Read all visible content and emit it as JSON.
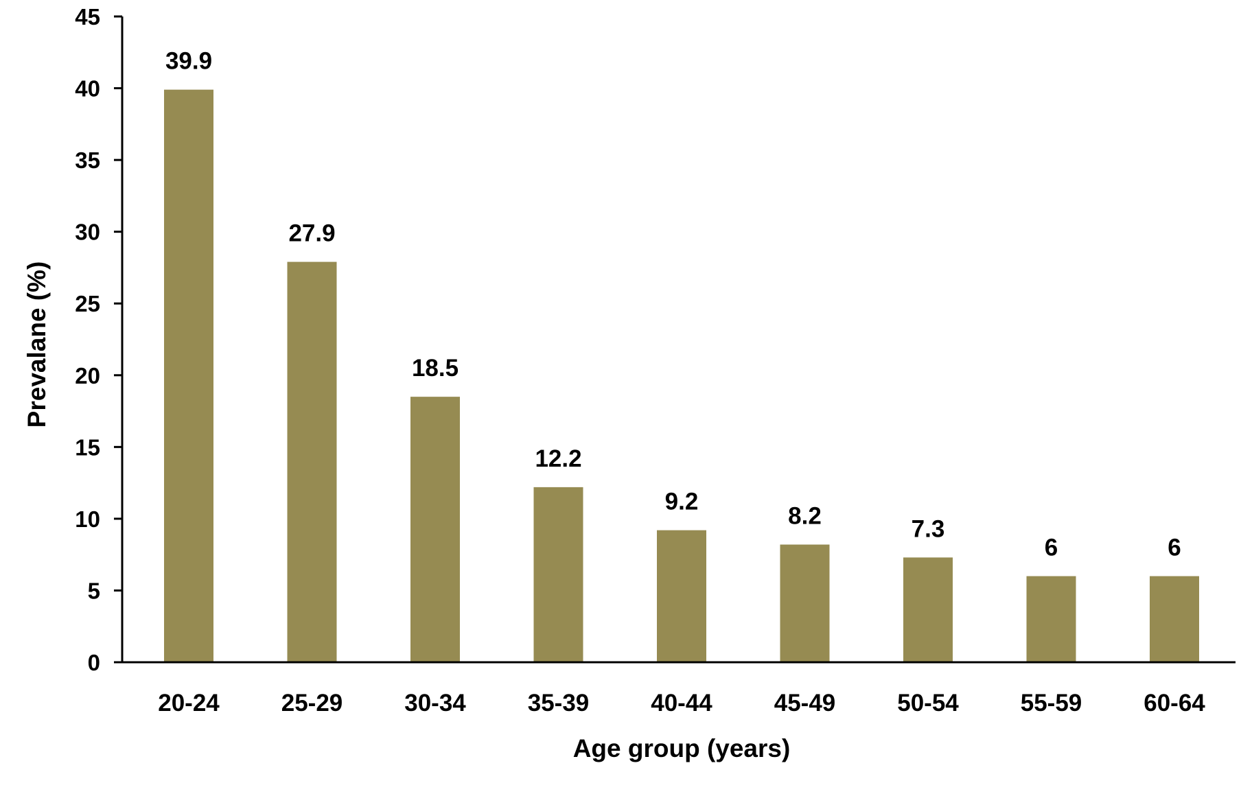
{
  "chart_data": {
    "type": "bar",
    "title": "",
    "xlabel": "Age group (years)",
    "ylabel": "Prevalane (%)",
    "categories": [
      "20-24",
      "25-29",
      "30-34",
      "35-39",
      "40-44",
      "45-49",
      "50-54",
      "55-59",
      "60-64"
    ],
    "values": [
      39.9,
      27.9,
      18.5,
      12.2,
      9.2,
      8.2,
      7.3,
      6,
      6
    ],
    "value_labels": [
      "39.9",
      "27.9",
      "18.5",
      "12.2",
      "9.2",
      "8.2",
      "7.3",
      "6",
      "6"
    ],
    "ylim": [
      0,
      45
    ],
    "yticks": [
      "0",
      "5",
      "10",
      "15",
      "20",
      "25",
      "30",
      "35",
      "40",
      "45"
    ],
    "grid": false,
    "legend": "none",
    "bar_color": "#968b52",
    "axis_color": "#000000"
  }
}
